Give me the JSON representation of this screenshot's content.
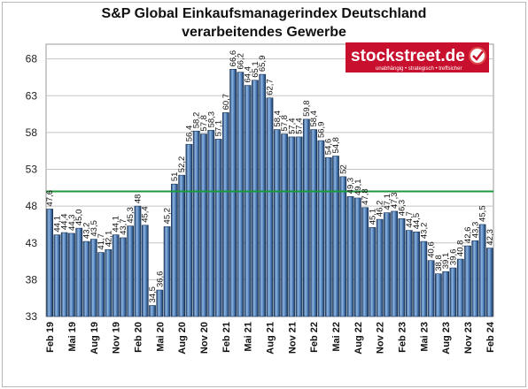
{
  "chart_data": {
    "type": "bar",
    "title_line1": "S&P Global Einkaufsmanagerindex Deutschland",
    "title_line2": "verarbeitendes Gewerbe",
    "ylim": [
      33,
      70
    ],
    "yticks": [
      33,
      38,
      43,
      48,
      53,
      58,
      63,
      68
    ],
    "reference_line": 50,
    "reference_color": "#1a9a3c",
    "bar_color": "#4f7fb8",
    "grid": true,
    "xtick_labels": [
      "Feb 19",
      "Mai 19",
      "Aug 19",
      "Nov 19",
      "Feb 20",
      "Mai 20",
      "Aug 20",
      "Nov 20",
      "Feb 21",
      "Mai 21",
      "Aug 21",
      "Nov 21",
      "Feb 22",
      "Mai 22",
      "Aug 22",
      "Nov 22",
      "Feb 23",
      "Mai 23",
      "Aug 23",
      "Nov 23",
      "Feb 24"
    ],
    "categories": [
      "Feb 19",
      "Mrz 19",
      "Apr 19",
      "Mai 19",
      "Jun 19",
      "Jul 19",
      "Aug 19",
      "Sep 19",
      "Okt 19",
      "Nov 19",
      "Dez 19",
      "Jan 20",
      "Feb 20",
      "Mrz 20",
      "Apr 20",
      "Mai 20",
      "Jun 20",
      "Jul 20",
      "Aug 20",
      "Sep 20",
      "Okt 20",
      "Nov 20",
      "Dez 20",
      "Jan 21",
      "Feb 21",
      "Mrz 21",
      "Apr 21",
      "Mai 21",
      "Jun 21",
      "Jul 21",
      "Aug 21",
      "Sep 21",
      "Okt 21",
      "Nov 21",
      "Dez 21",
      "Jan 22",
      "Feb 22",
      "Mrz 22",
      "Apr 22",
      "Mai 22",
      "Jun 22",
      "Jul 22",
      "Aug 22",
      "Sep 22",
      "Okt 22",
      "Nov 22",
      "Dez 22",
      "Jan 23",
      "Feb 23",
      "Mrz 23",
      "Apr 23",
      "Mai 23",
      "Jun 23",
      "Jul 23",
      "Aug 23",
      "Sep 23",
      "Okt 23",
      "Nov 23",
      "Dez 23",
      "Jan 24",
      "Feb 24"
    ],
    "values": [
      47.6,
      44.1,
      44.4,
      44.3,
      45.0,
      43.2,
      43.5,
      41.7,
      42.1,
      44.1,
      43.7,
      45.3,
      48.0,
      45.4,
      34.5,
      36.6,
      45.2,
      51.0,
      52.2,
      56.4,
      58.2,
      57.8,
      58.3,
      57.1,
      60.7,
      66.6,
      66.2,
      64.4,
      65.1,
      65.9,
      62.7,
      58.4,
      57.8,
      57.4,
      57.4,
      59.8,
      58.4,
      56.9,
      54.6,
      54.8,
      52.0,
      49.3,
      49.1,
      47.8,
      45.1,
      46.2,
      47.1,
      47.3,
      46.3,
      44.7,
      44.5,
      43.2,
      40.6,
      38.8,
      39.1,
      39.6,
      40.8,
      42.6,
      43.3,
      45.5,
      42.3
    ],
    "value_labels": [
      "47,6",
      "44,1",
      "44,4",
      "44,3",
      "45,0",
      "43,2",
      "43,5",
      "41,7",
      "42,1",
      "44,1",
      "43,7",
      "45,3",
      "48",
      "45,4",
      "34,5",
      "36,6",
      "45,2",
      "51",
      "52,2",
      "56,4",
      "58,2",
      "57,8",
      "58,3",
      "57,1",
      "60,7",
      "66,6",
      "66,2",
      "64,4",
      "65,1",
      "65,9",
      "62,7",
      "58,4",
      "57,8",
      "57,4",
      "57,4",
      "59,8",
      "58,4",
      "56,9",
      "54,6",
      "54,8",
      "52",
      "49,3",
      "49,1",
      "47,8",
      "45,1",
      "46,2",
      "47,1",
      "47,3",
      "46,3",
      "44,7",
      "44,5",
      "43,2",
      "40,6",
      "38,8",
      "39,1",
      "39,6",
      "40,8",
      "42,6",
      "43,3",
      "45,5",
      "42,3"
    ]
  },
  "logo": {
    "text": "stockstreet.de",
    "tagline": "unabhängig • strategisch • treffsicher",
    "background": "#c8102e"
  }
}
